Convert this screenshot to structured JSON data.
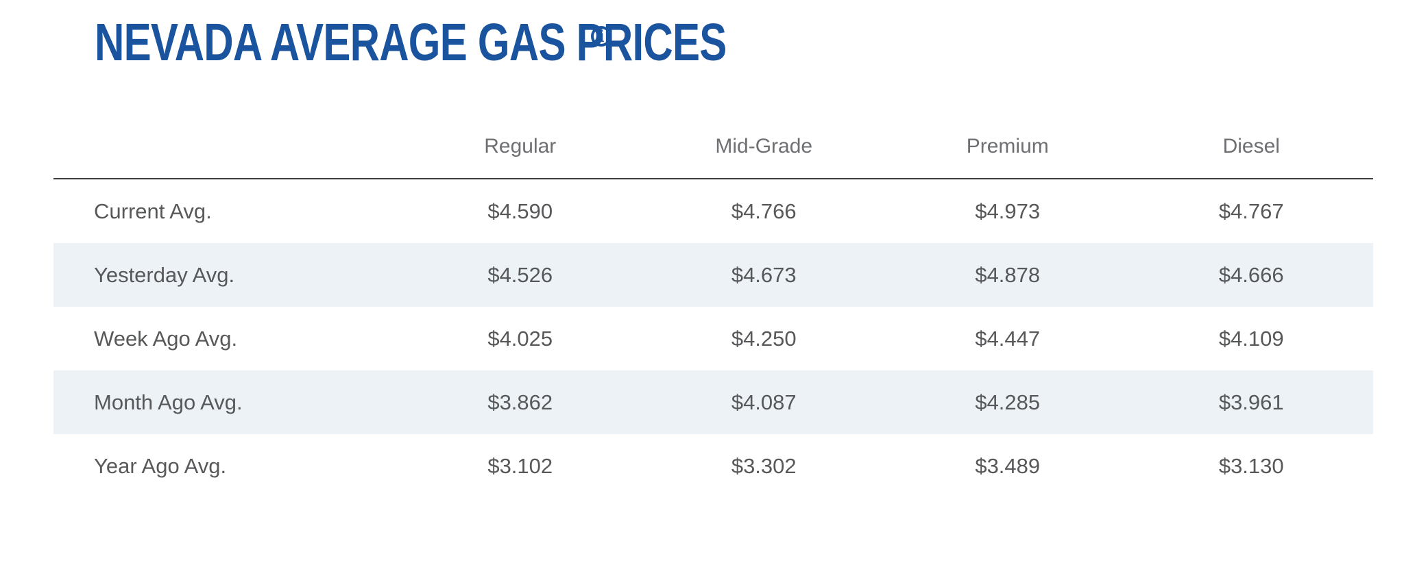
{
  "header": {
    "title": "NEVADA AVERAGE GAS PRICES",
    "info_icon_glyph": "i"
  },
  "colors": {
    "title_blue": "#1b549e",
    "body_text_gray": "#57585a",
    "header_text_gray": "#6e6f72",
    "row_shade": "#edf2f7",
    "divider": "#3d3d3f"
  },
  "chart_data": {
    "type": "table",
    "title": "Nevada Average Gas Prices",
    "columns": [
      "Regular",
      "Mid-Grade",
      "Premium",
      "Diesel"
    ],
    "rows": [
      {
        "label": "Current Avg.",
        "values": [
          "$4.590",
          "$4.766",
          "$4.973",
          "$4.767"
        ],
        "values_numeric": [
          4.59,
          4.766,
          4.973,
          4.767
        ]
      },
      {
        "label": "Yesterday Avg.",
        "values": [
          "$4.526",
          "$4.673",
          "$4.878",
          "$4.666"
        ],
        "values_numeric": [
          4.526,
          4.673,
          4.878,
          4.666
        ]
      },
      {
        "label": "Week Ago Avg.",
        "values": [
          "$4.025",
          "$4.250",
          "$4.447",
          "$4.109"
        ],
        "values_numeric": [
          4.025,
          4.25,
          4.447,
          4.109
        ]
      },
      {
        "label": "Month Ago Avg.",
        "values": [
          "$3.862",
          "$4.087",
          "$4.285",
          "$3.961"
        ],
        "values_numeric": [
          3.862,
          4.087,
          4.285,
          3.961
        ]
      },
      {
        "label": "Year Ago Avg.",
        "values": [
          "$3.102",
          "$3.302",
          "$3.489",
          "$3.130"
        ],
        "values_numeric": [
          3.102,
          3.302,
          3.489,
          3.13
        ]
      }
    ]
  }
}
